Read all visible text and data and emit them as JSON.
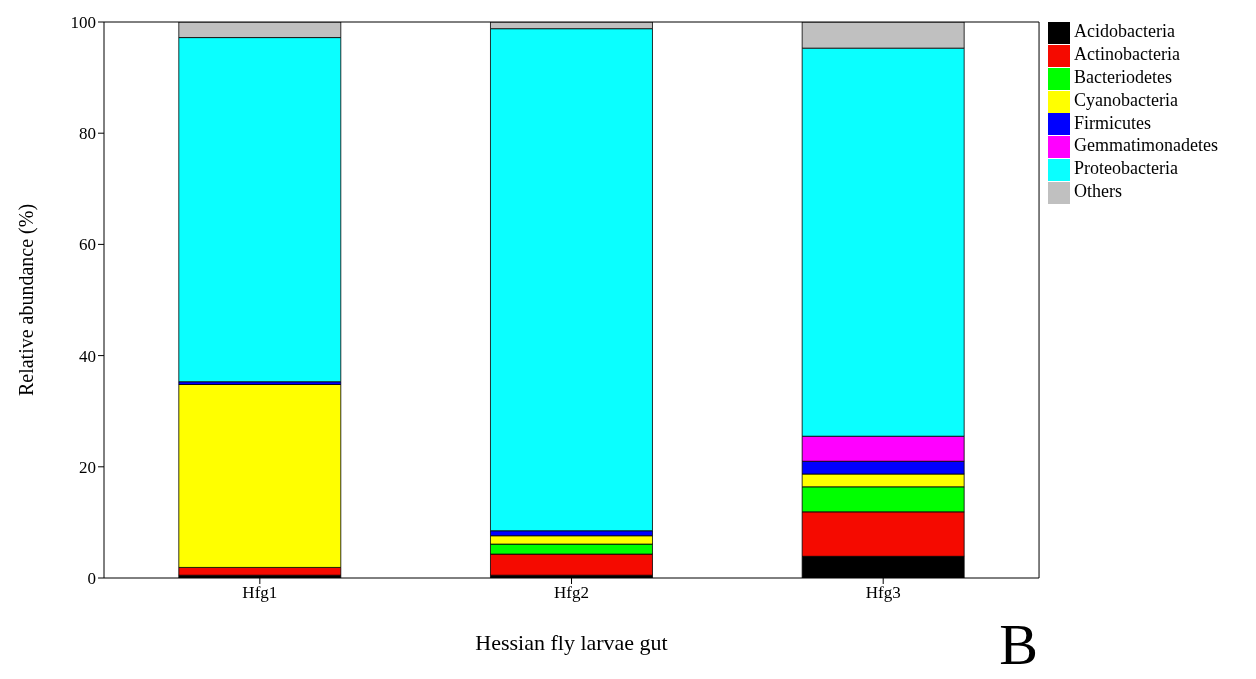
{
  "chart_data": {
    "type": "bar",
    "stacked": true,
    "xlabel": "Hessian fly larvae gut",
    "ylabel": "Relative abundance (%)",
    "categories": [
      "Hfg1",
      "Hfg2",
      "Hfg3"
    ],
    "series": [
      {
        "name": "Acidobacteria",
        "color": "#000000",
        "values": [
          0.5,
          0.5,
          3.9
        ]
      },
      {
        "name": "Actinobacteria",
        "color": "#f50a00",
        "values": [
          1.4,
          3.8,
          8.0
        ]
      },
      {
        "name": "Bacteriodetes",
        "color": "#00ff00",
        "values": [
          0,
          1.8,
          4.5
        ]
      },
      {
        "name": "Cyanobacteria",
        "color": "#ffff00",
        "values": [
          32.9,
          1.5,
          2.3
        ]
      },
      {
        "name": "Firmicutes",
        "color": "#0000ff",
        "values": [
          0.5,
          0.9,
          2.3
        ]
      },
      {
        "name": "Gemmatimonadetes",
        "color": "#ff00ff",
        "values": [
          0,
          0,
          4.5
        ]
      },
      {
        "name": "Proteobacteria",
        "color": "#0affff",
        "values": [
          61.9,
          90.3,
          69.8
        ]
      },
      {
        "name": "Others",
        "color": "#c0c0c0",
        "values": [
          2.8,
          1.2,
          4.7
        ]
      }
    ],
    "ylim": [
      0,
      100
    ],
    "yticks": [
      0,
      20,
      40,
      60,
      80,
      100
    ],
    "legend": "top right",
    "annotations": [
      "B"
    ]
  }
}
